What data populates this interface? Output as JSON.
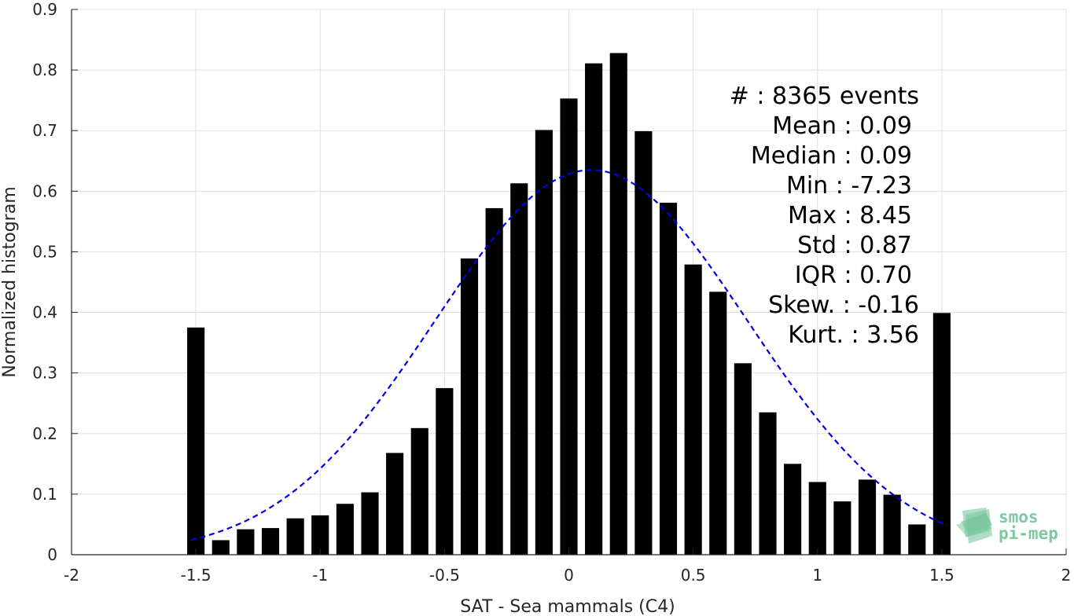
{
  "chart_data": {
    "type": "bar",
    "xlabel": "SAT - Sea mammals (C4)",
    "ylabel": "Normalized histogram",
    "xlim": [
      -2,
      2
    ],
    "ylim": [
      0,
      0.9
    ],
    "grid": true,
    "x_ticks": [
      "-2",
      "-1.5",
      "-1",
      "-0.5",
      "0",
      "0.5",
      "1",
      "1.5",
      "2"
    ],
    "x_tick_values": [
      -2,
      -1.5,
      -1,
      -0.5,
      0,
      0.5,
      1,
      1.5,
      2
    ],
    "y_ticks": [
      "0",
      "0.1",
      "0.2",
      "0.3",
      "0.4",
      "0.5",
      "0.6",
      "0.7",
      "0.8",
      "0.9"
    ],
    "y_tick_values": [
      0,
      0.1,
      0.2,
      0.3,
      0.4,
      0.5,
      0.6,
      0.7,
      0.8,
      0.9
    ],
    "bar_color": "#000000",
    "bins": [
      -1.5,
      -1.4,
      -1.3,
      -1.2,
      -1.1,
      -1.0,
      -0.9,
      -0.8,
      -0.7,
      -0.6,
      -0.5,
      -0.4,
      -0.3,
      -0.2,
      -0.1,
      0.0,
      0.1,
      0.2,
      0.3,
      0.4,
      0.5,
      0.6,
      0.7,
      0.8,
      0.9,
      1.0,
      1.1,
      1.2,
      1.3,
      1.4,
      1.5
    ],
    "values": [
      0.375,
      0.024,
      0.042,
      0.044,
      0.06,
      0.065,
      0.084,
      0.103,
      0.168,
      0.209,
      0.275,
      0.489,
      0.572,
      0.613,
      0.701,
      0.753,
      0.811,
      0.828,
      0.699,
      0.581,
      0.479,
      0.434,
      0.316,
      0.235,
      0.15,
      0.12,
      0.088,
      0.124,
      0.099,
      0.05,
      0.399
    ],
    "fit_curve": {
      "type": "gaussian",
      "mean": 0.09,
      "std": 0.63,
      "peak": 0.635,
      "x_range": [
        -1.52,
        1.52
      ],
      "color": "#0000e6",
      "style": "dashed"
    },
    "stats": [
      {
        "label": "#  ",
        "value": ": 8365 events"
      },
      {
        "label": "Mean ",
        "value": ": 0.09"
      },
      {
        "label": "Median ",
        "value": ": 0.09"
      },
      {
        "label": "Min ",
        "value": ": -7.23"
      },
      {
        "label": "Max ",
        "value": ": 8.45"
      },
      {
        "label": "Std ",
        "value": ": 0.87"
      },
      {
        "label": "IQR ",
        "value": ": 0.70"
      },
      {
        "label": "Skew. ",
        "value": ": -0.16"
      },
      {
        "label": "Kurt. ",
        "value": ": 3.56"
      }
    ]
  },
  "logo": {
    "line1": "smos",
    "line2": "pi-mep",
    "color": "#7fc9a0"
  }
}
